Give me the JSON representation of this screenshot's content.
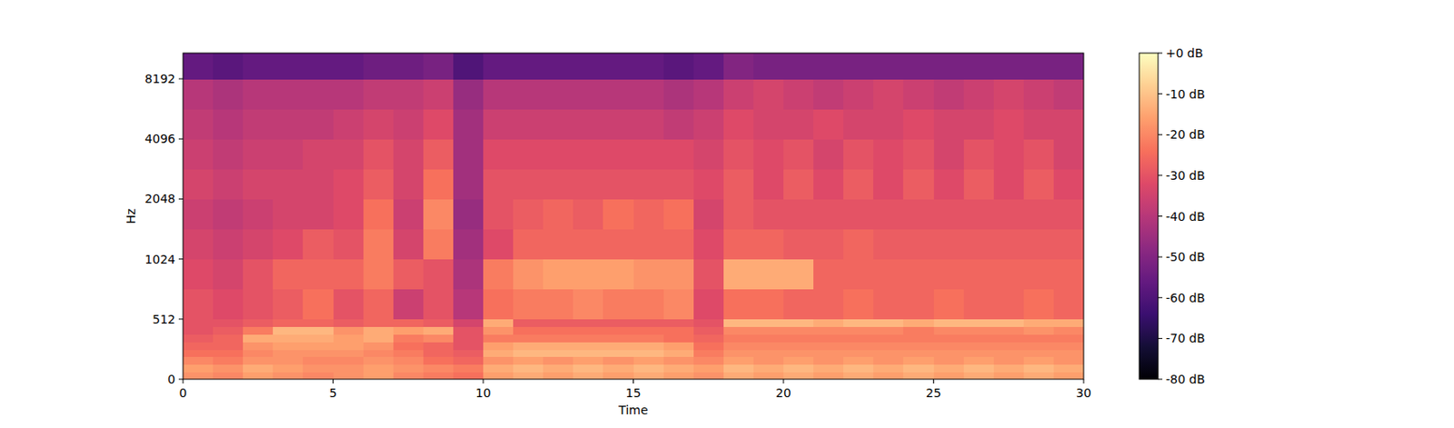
{
  "chart_data": {
    "type": "heatmap",
    "x_label": "Time",
    "y_label": "Hz",
    "xlim": [
      0,
      30
    ],
    "xticks": [
      0,
      5,
      10,
      15,
      20,
      25,
      30
    ],
    "ylim": [
      0,
      11025
    ],
    "yticks": [
      0,
      512,
      1024,
      2048,
      4096,
      8192
    ],
    "log": "y",
    "x_edges": [
      0,
      1,
      2,
      3,
      4,
      5,
      6,
      7,
      8,
      9,
      10,
      11,
      12,
      13,
      14,
      15,
      16,
      17,
      18,
      19,
      20,
      21,
      22,
      23,
      24,
      25,
      26,
      27,
      28,
      29,
      30
    ],
    "y_edges": [
      0,
      64,
      128,
      192,
      256,
      320,
      384,
      448,
      512,
      724,
      1024,
      1448,
      2048,
      2896,
      4096,
      5793,
      8192,
      11025
    ],
    "cells": [
      [
        -18,
        -20,
        -16,
        -18,
        -20,
        -18,
        -16,
        -20,
        -22,
        -24,
        -16,
        -14,
        -16,
        -14,
        -16,
        -14,
        -16,
        -18,
        -14,
        -16,
        -14,
        -16,
        -14,
        -16,
        -14,
        -16,
        -14,
        -16,
        -14,
        -16
      ],
      [
        -16,
        -18,
        -14,
        -16,
        -18,
        -18,
        -16,
        -18,
        -20,
        -22,
        -14,
        -12,
        -14,
        -12,
        -14,
        -12,
        -14,
        -16,
        -12,
        -14,
        -12,
        -14,
        -12,
        -14,
        -12,
        -14,
        -12,
        -14,
        -12,
        -14
      ],
      [
        -20,
        -22,
        -18,
        -18,
        -20,
        -20,
        -18,
        -20,
        -24,
        -26,
        -18,
        -16,
        -18,
        -16,
        -18,
        -16,
        -18,
        -20,
        -16,
        -18,
        -16,
        -18,
        -16,
        -18,
        -16,
        -18,
        -16,
        -18,
        -16,
        -18
      ],
      [
        -24,
        -24,
        -20,
        -18,
        -18,
        -18,
        -20,
        -22,
        -26,
        -28,
        -14,
        -12,
        -12,
        -12,
        -12,
        -12,
        -14,
        -22,
        -18,
        -18,
        -18,
        -18,
        -18,
        -18,
        -18,
        -18,
        -18,
        -18,
        -18,
        -18
      ],
      [
        -26,
        -26,
        -18,
        -16,
        -16,
        -16,
        -18,
        -24,
        -26,
        -30,
        -16,
        -14,
        -14,
        -14,
        -14,
        -14,
        -16,
        -24,
        -20,
        -20,
        -20,
        -20,
        -20,
        -20,
        -20,
        -20,
        -20,
        -20,
        -20,
        -20
      ],
      [
        -28,
        -26,
        -14,
        -14,
        -14,
        -16,
        -14,
        -22,
        -20,
        -30,
        -22,
        -22,
        -22,
        -22,
        -22,
        -22,
        -24,
        -26,
        -22,
        -22,
        -22,
        -22,
        -22,
        -22,
        -22,
        -22,
        -22,
        -22,
        -22,
        -22
      ],
      [
        -30,
        -28,
        -22,
        -12,
        -12,
        -18,
        -14,
        -16,
        -14,
        -30,
        -18,
        -24,
        -24,
        -24,
        -24,
        -24,
        -24,
        -28,
        -20,
        -20,
        -20,
        -20,
        -20,
        -20,
        -22,
        -20,
        -20,
        -20,
        -18,
        -20
      ],
      [
        -30,
        -30,
        -28,
        -26,
        -26,
        -28,
        -26,
        -26,
        -28,
        -34,
        -14,
        -28,
        -28,
        -28,
        -28,
        -28,
        -28,
        -30,
        -12,
        -12,
        -12,
        -14,
        -12,
        -12,
        -14,
        -12,
        -12,
        -12,
        -14,
        -14
      ],
      [
        -30,
        -32,
        -30,
        -28,
        -24,
        -30,
        -26,
        -36,
        -30,
        -40,
        -24,
        -22,
        -22,
        -20,
        -22,
        -22,
        -20,
        -32,
        -24,
        -24,
        -26,
        -26,
        -24,
        -26,
        -26,
        -24,
        -26,
        -26,
        -24,
        -26
      ],
      [
        -32,
        -34,
        -30,
        -26,
        -26,
        -26,
        -22,
        -28,
        -30,
        -42,
        -22,
        -18,
        -16,
        -16,
        -16,
        -18,
        -18,
        -30,
        -14,
        -14,
        -14,
        -26,
        -26,
        -26,
        -26,
        -26,
        -26,
        -26,
        -26,
        -26
      ],
      [
        -34,
        -36,
        -34,
        -32,
        -28,
        -30,
        -22,
        -34,
        -22,
        -44,
        -32,
        -26,
        -26,
        -26,
        -26,
        -26,
        -26,
        -32,
        -26,
        -26,
        -28,
        -28,
        -26,
        -28,
        -28,
        -28,
        -28,
        -28,
        -28,
        -28
      ],
      [
        -36,
        -38,
        -36,
        -34,
        -34,
        -32,
        -24,
        -36,
        -20,
        -46,
        -30,
        -28,
        -26,
        -28,
        -24,
        -26,
        -24,
        -34,
        -28,
        -30,
        -30,
        -30,
        -30,
        -30,
        -30,
        -30,
        -30,
        -30,
        -30,
        -30
      ],
      [
        -34,
        -36,
        -34,
        -34,
        -34,
        -32,
        -28,
        -34,
        -24,
        -44,
        -30,
        -30,
        -30,
        -30,
        -30,
        -30,
        -30,
        -32,
        -28,
        -32,
        -28,
        -32,
        -28,
        -32,
        -28,
        -32,
        -28,
        -32,
        -28,
        -32
      ],
      [
        -36,
        -38,
        -36,
        -36,
        -34,
        -34,
        -30,
        -34,
        -28,
        -44,
        -32,
        -32,
        -32,
        -32,
        -32,
        -32,
        -32,
        -34,
        -30,
        -32,
        -30,
        -34,
        -30,
        -32,
        -30,
        -34,
        -30,
        -32,
        -30,
        -34
      ],
      [
        -38,
        -40,
        -38,
        -38,
        -38,
        -36,
        -34,
        -36,
        -32,
        -44,
        -36,
        -36,
        -36,
        -36,
        -36,
        -36,
        -38,
        -36,
        -32,
        -34,
        -34,
        -32,
        -34,
        -34,
        -32,
        -34,
        -34,
        -32,
        -34,
        -34
      ],
      [
        -40,
        -42,
        -40,
        -40,
        -40,
        -40,
        -38,
        -38,
        -36,
        -46,
        -40,
        -40,
        -40,
        -40,
        -40,
        -40,
        -42,
        -40,
        -36,
        -34,
        -36,
        -38,
        -36,
        -34,
        -36,
        -38,
        -36,
        -34,
        -36,
        -38
      ],
      [
        -56,
        -58,
        -56,
        -56,
        -56,
        -56,
        -54,
        -54,
        -52,
        -60,
        -56,
        -56,
        -56,
        -56,
        -56,
        -56,
        -58,
        -56,
        -50,
        -52,
        -52,
        -52,
        -52,
        -52,
        -52,
        -52,
        -52,
        -52,
        -52,
        -52
      ]
    ],
    "color_range": [
      -80,
      0
    ],
    "color_ticks": [
      {
        "value": 0,
        "label": "+0 dB"
      },
      {
        "value": -10,
        "label": "-10 dB"
      },
      {
        "value": -20,
        "label": "-20 dB"
      },
      {
        "value": -30,
        "label": "-30 dB"
      },
      {
        "value": -40,
        "label": "-40 dB"
      },
      {
        "value": -50,
        "label": "-50 dB"
      },
      {
        "value": -60,
        "label": "-60 dB"
      },
      {
        "value": -70,
        "label": "-70 dB"
      },
      {
        "value": -80,
        "label": "-80 dB"
      }
    ]
  }
}
